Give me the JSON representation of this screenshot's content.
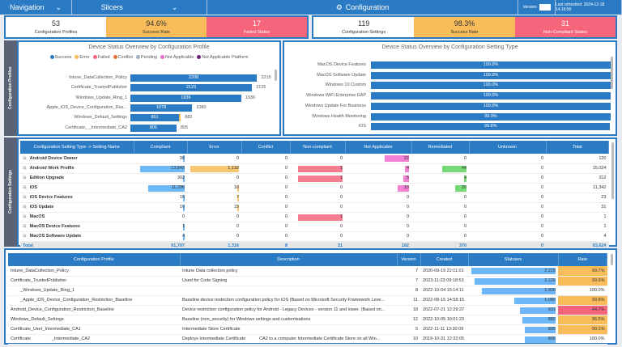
{
  "topbar": {
    "navigation": "Navigation",
    "slicers": "Slicers",
    "title": "Configuration",
    "version_label": "Version:",
    "last_refreshed": "Last refreshed: 2024-12-18 14:16:50"
  },
  "kpi_left": [
    {
      "value": "53",
      "label": "Configuration Profiles"
    },
    {
      "value": "94.6%",
      "label": "Success Rate"
    },
    {
      "value": "17",
      "label": "Failed States"
    }
  ],
  "kpi_right": [
    {
      "value": "119",
      "label": "Configuration Settings"
    },
    {
      "value": "98.3%",
      "label": "Success Rate"
    },
    {
      "value": "31",
      "label": "Non-Compliant States"
    }
  ],
  "side_labels": {
    "profiles": "Configuration Profiles",
    "settings": "Configuration Settings"
  },
  "colors": {
    "accent": "#2b7bc4",
    "success": "#2b7bc4",
    "error": "#f8bd5a",
    "failed": "#f5657c",
    "conflict": "#e8703a",
    "pending": "#a0aec0",
    "not_applicable": "#f06acb",
    "not_applicable_platform": "#6b1f7b",
    "remediated": "#5fd35f",
    "compliant_bar": "#55aaf5"
  },
  "chart_data": [
    {
      "type": "bar",
      "title": "Device Status Overview by Configuration Profile",
      "legend": [
        "Success",
        "Error",
        "Failed",
        "Conflict",
        "Pending",
        "Not Applicable",
        "Not Applicable Platform"
      ],
      "legend_placement": "top",
      "categories": [
        "Intune_DataCollection_Policy",
        "Certificate_TrustedPublisher",
        "Windows_Update_Ring_1",
        "Apple_iOS_Device_Configuration_Res...",
        "Windows_Default_Settings",
        "Certificate_         _Intermediate_CA2"
      ],
      "series": [
        {
          "name": "Success",
          "values": [
            2208,
            2123,
            1936,
            1078,
            851,
            805
          ]
        },
        {
          "name": "Error",
          "values": [
            0,
            0,
            0,
            0,
            31,
            0
          ]
        }
      ],
      "totals": [
        2215,
        2126,
        1936,
        1080,
        882,
        805
      ]
    },
    {
      "type": "bar",
      "title": "Device Status Overview by Configuration Setting Type",
      "categories": [
        "MacOS Device Features",
        "MacOS Software Update",
        "Windows 10 Custom",
        "Windows WiFi Enterprise EAP",
        "Windows Update For Business",
        "Windows Health Monitoring",
        "iOS"
      ],
      "values": [
        100.0,
        100.0,
        100.0,
        100.0,
        100.0,
        99.9,
        99.8
      ],
      "labels": [
        "100.0%",
        "100.0%",
        "100.0%",
        "100.0%",
        "100.0%",
        "99.9%",
        "99.8%"
      ],
      "xlim": [
        0,
        100
      ]
    }
  ],
  "settings_table": {
    "headers": [
      "Configuration Setting Type -> Setting Name",
      "Compliant",
      "Error",
      "Conflict",
      "Non-compliant",
      "Not Applicable",
      "Remediated",
      "Unknown",
      "Total"
    ],
    "rows": [
      [
        "Android Device Owner",
        "98",
        "0",
        "0",
        "0",
        "22",
        "0",
        "0",
        "120"
      ],
      [
        "Android Work Profile",
        "13,843",
        "1,132",
        "0",
        "1",
        "4",
        "44",
        "0",
        "15,024"
      ],
      [
        "Edition Upgrade",
        "302",
        "0",
        "0",
        "1",
        "5",
        "4",
        "0",
        "312"
      ],
      [
        "iOS",
        "11,296",
        "16",
        "0",
        "0",
        "10",
        "20",
        "0",
        "11,342"
      ],
      [
        "iOS Device Features",
        "16",
        "7",
        "0",
        "0",
        "0",
        "0",
        "0",
        "23"
      ],
      [
        "iOS Update",
        "16",
        "15",
        "0",
        "0",
        "0",
        "0",
        "0",
        "31"
      ],
      [
        "MacOS",
        "0",
        "0",
        "0",
        "1",
        "0",
        "0",
        "0",
        "1"
      ],
      [
        "MacOS Device Features",
        "1",
        "0",
        "0",
        "0",
        "0",
        "0",
        "0",
        "1"
      ],
      [
        "MacOS Software Update",
        "4",
        "0",
        "0",
        "0",
        "0",
        "0",
        "0",
        "4"
      ]
    ],
    "total": [
      "Total",
      "91,707",
      "1,316",
      "8",
      "31",
      "192",
      "370",
      "0",
      "93,624"
    ]
  },
  "profiles_table": {
    "headers": [
      "Configuration Profile",
      "Description",
      "Version",
      "Created",
      "Statuses",
      "Rate"
    ],
    "rows": [
      [
        "Intune_DataCollection_Policy",
        "Intune Data collection policy",
        "7",
        "2020-09-19 22:11:01",
        "2,215",
        "99.7%"
      ],
      [
        "Certificate_TrustedPublisher",
        "Used for Code Signing",
        "7",
        "2023-11-23 09:18:53",
        "2,126",
        "99.9%"
      ],
      [
        "        _Windows_Update_Ring_1",
        "",
        "8",
        "2022-10-04 15:14:11",
        "1,936",
        "100.0%"
      ],
      [
        "        _Apple_iOS_Device_Configuration_Restriction_Baseline",
        "Baseline device restriction configuration policy for iOS (Based on Microsoft Security Framework Leve...",
        "11",
        "2022-08-15 14:58:15",
        "1,080",
        "99.8%"
      ],
      [
        "Android_Device_Configuration_Restriction_Baseline",
        "Device restriction configuration policy for Android - Legacy Devices - version 11 and lower. (Based on...",
        "18",
        "2022-07-21 12:29:27",
        "933",
        "44.7%"
      ],
      [
        "Windows_Default_Settings",
        "Baseline (non_security) for Windows settings and customisations",
        "12",
        "2022-10-05 10:01:23",
        "882",
        "96.5%"
      ],
      [
        "Certificate_User_Intermediate_CA1",
        "Intermediate Store Certificate",
        "5",
        "2022-11-11 13:30:09",
        "805",
        "90.1%"
      ],
      [
        "Certificate                 _Intermediate_CA2",
        "Deploys Intermediate Certificate           CA2 to a computer Intermediate Certificate Store on all Win...",
        "10",
        "2019-10-31 12:32:05",
        "805",
        "100.0%"
      ]
    ],
    "status_values": [
      2215,
      2126,
      1936,
      1080,
      933,
      882,
      805,
      805
    ],
    "rate_values": [
      99.7,
      99.9,
      100.0,
      99.8,
      44.7,
      96.5,
      90.1,
      100.0
    ]
  }
}
